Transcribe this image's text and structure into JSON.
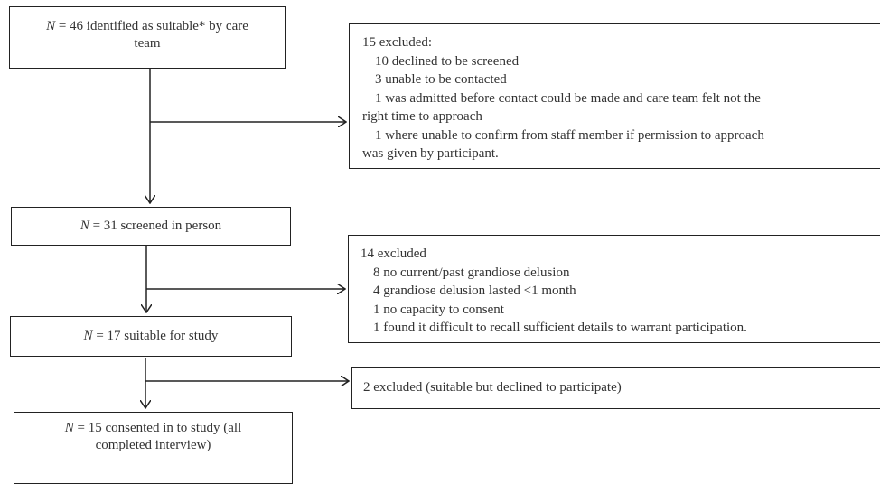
{
  "boxes": {
    "identified": {
      "n_label": "N",
      "text_line1": " = 46 identified as suitable* by care",
      "text_line2": "team"
    },
    "screened": {
      "n_label": "N",
      "text": " = 31 screened in person"
    },
    "suitable": {
      "n_label": "N",
      "text": " = 17 suitable for study"
    },
    "consented": {
      "n_label": "N",
      "text_line1": " = 15 consented in to study (all",
      "text_line2": "completed interview)"
    }
  },
  "exclusions": {
    "first": {
      "heading": "15 excluded:",
      "lines": [
        "10 declined to be screened",
        "3 unable to be contacted",
        "1 was admitted before contact could be made and care team felt not the",
        "right time to approach",
        "1 where unable to confirm from staff member if permission to approach",
        "was given by participant."
      ]
    },
    "second": {
      "heading": "14 excluded",
      "lines": [
        "8 no current/past grandiose delusion",
        "4 grandiose delusion lasted <1 month",
        "1 no capacity to consent",
        "1 found it difficult to recall sufficient details to warrant participation."
      ]
    },
    "third": {
      "text": "2 excluded (suitable but declined to participate)"
    }
  }
}
